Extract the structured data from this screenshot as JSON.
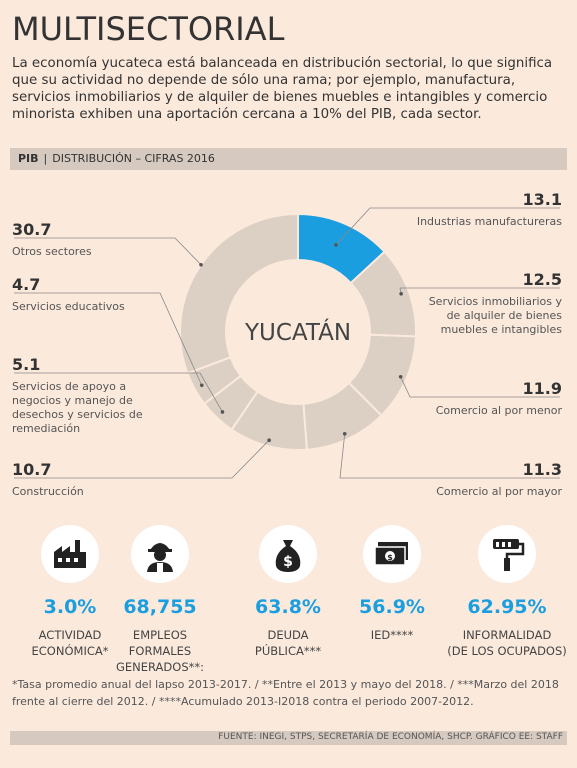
{
  "header": {
    "title": "MULTISECTORIAL",
    "intro": "La economía yucateca está balanceada en distribución sectorial, lo que significa que su actividad no depende de sólo una rama; por ejemplo, manufactura, servicios inmobiliarios y de alquiler de bienes muebles e intangibles y comercio minorista exhiben una aportación cercana a 10% del PIB, cada sector."
  },
  "pib_bar": {
    "tag": "PIB",
    "label": "DISTRIBUCIÓN – CIFRAS 2016"
  },
  "chart_data": {
    "type": "pie",
    "donut_label": "YUCATÁN",
    "highlight_color": "#1a9ee0",
    "base_color": "#dcd0c5",
    "slices": [
      {
        "label": "Industrias manufactureras",
        "value": 13.1,
        "value_text": "13.1",
        "highlight": true
      },
      {
        "label": "Servicios inmobiliarios y de alquiler de bienes muebles e intangibles",
        "value": 12.5,
        "value_text": "12.5"
      },
      {
        "label": "Comercio al por menor",
        "value": 11.9,
        "value_text": "11.9"
      },
      {
        "label": "Comercio al por mayor",
        "value": 11.3,
        "value_text": "11.3"
      },
      {
        "label": "Construcción",
        "value": 10.7,
        "value_text": "10.7"
      },
      {
        "label": "Servicios de apoyo a negocios y manejo de desechos y servicios de remediación",
        "value": 5.1,
        "value_text": "5.1"
      },
      {
        "label": "Servicios educativos",
        "value": 4.7,
        "value_text": "4.7"
      },
      {
        "label": "Otros sectores",
        "value": 30.7,
        "value_text": "30.7"
      }
    ]
  },
  "stats": [
    {
      "icon": "factory-icon",
      "value": "3.0%",
      "name": "ACTIVIDAD\nECONÓMICA*"
    },
    {
      "icon": "worker-icon",
      "value": "68,755",
      "name": "EMPLEOS FORMALES\nGENERADOS**:"
    },
    {
      "icon": "money-bag-icon",
      "value": "63.8%",
      "name": "DEUDA\nPÚBLICA***"
    },
    {
      "icon": "banknotes-icon",
      "value": "56.9%",
      "name": "IED****"
    },
    {
      "icon": "paint-roller-icon",
      "value": "62.95%",
      "name": "INFORMALIDAD\n(DE LOS OCUPADOS)"
    }
  ],
  "footnote": "*Tasa promedio anual del lapso 2013-2017. / **Entre el 2013 y mayo del 2018. / ***Marzo del 2018 frente al cierre del 2012. / ****Acumulado 2013-I2018 contra el periodo 2007-2012.",
  "source": "FUENTE: INEGI, STPS, SECRETARÍA DE ECONOMÍA, SHCP.  GRÁFICO EE: STAFF"
}
